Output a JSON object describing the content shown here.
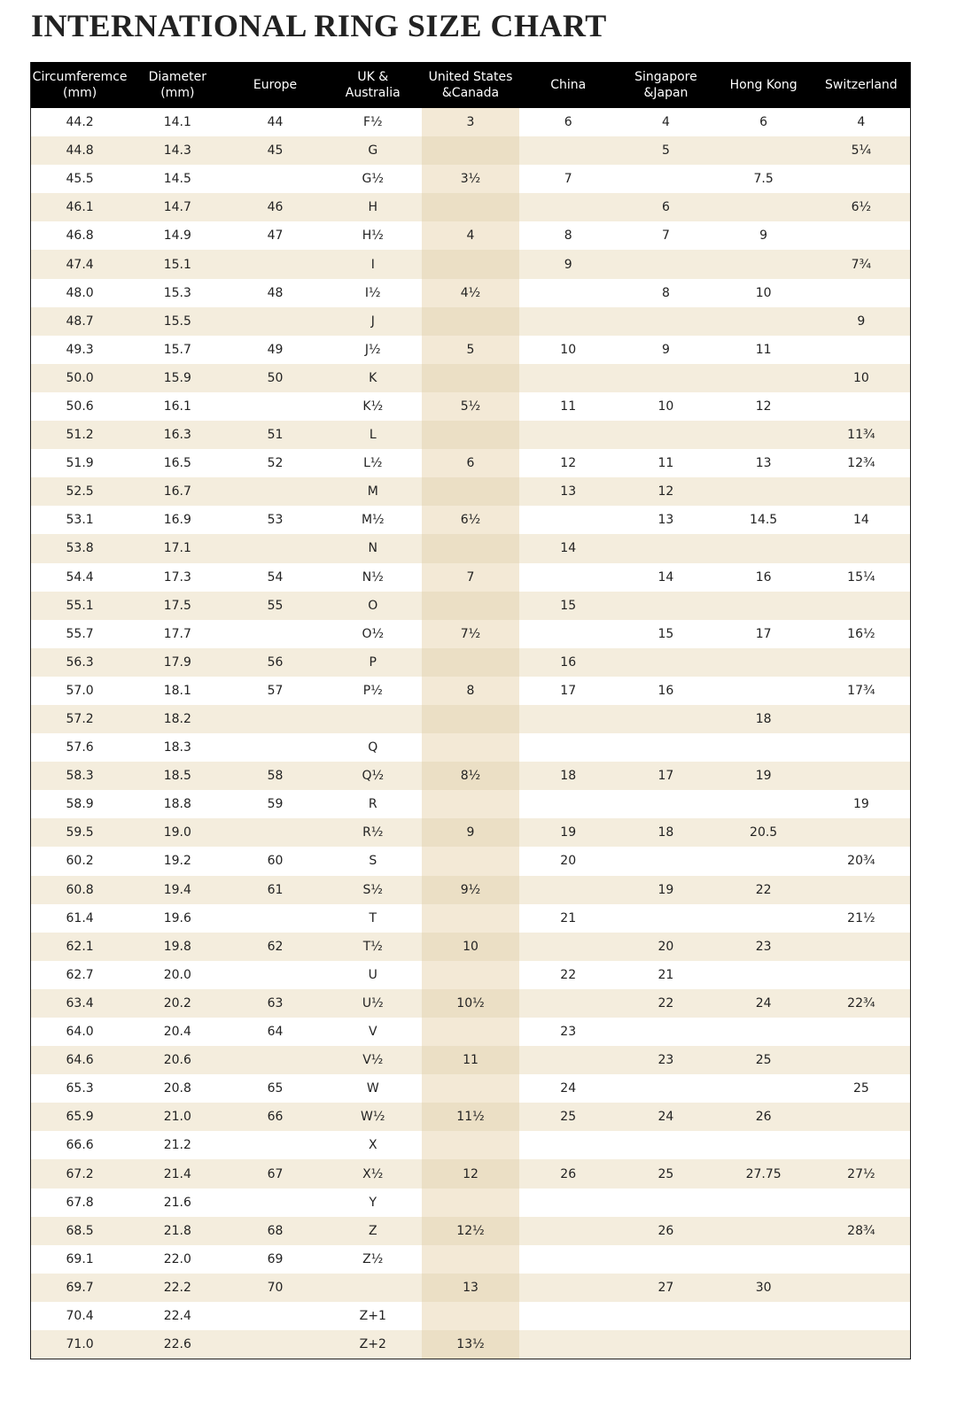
{
  "title": "INTERNATIONAL RING SIZE CHART",
  "colors": {
    "header_bg": "#000000",
    "stripe": "#f4eddd",
    "us_column": "#f3e9d6"
  },
  "chart_data": {
    "type": "table",
    "columns": [
      [
        "Circumferemce",
        "(mm)"
      ],
      [
        "Diameter",
        "(mm)"
      ],
      [
        "Europe"
      ],
      [
        "UK &",
        "Australia"
      ],
      [
        "United States",
        "&Canada"
      ],
      [
        "China"
      ],
      [
        "Singapore",
        "&Japan"
      ],
      [
        "Hong Kong"
      ],
      [
        "Switzerland"
      ]
    ],
    "rows": [
      [
        "44.2",
        "14.1",
        "44",
        "F½",
        "3",
        "6",
        "4",
        "6",
        "4"
      ],
      [
        "44.8",
        "14.3",
        "45",
        "G",
        "",
        "",
        "5",
        "",
        "5¼"
      ],
      [
        "45.5",
        "14.5",
        "",
        "G½",
        "3½",
        "7",
        "",
        "7.5",
        ""
      ],
      [
        "46.1",
        "14.7",
        "46",
        "H",
        "",
        "",
        "6",
        "",
        "6½"
      ],
      [
        "46.8",
        "14.9",
        "47",
        "H½",
        "4",
        "8",
        "7",
        "9",
        ""
      ],
      [
        "47.4",
        "15.1",
        "",
        "I",
        "",
        "9",
        "",
        "",
        "7¾"
      ],
      [
        "48.0",
        "15.3",
        "48",
        "I½",
        "4½",
        "",
        "8",
        "10",
        ""
      ],
      [
        "48.7",
        "15.5",
        "",
        "J",
        "",
        "",
        "",
        "",
        "9"
      ],
      [
        "49.3",
        "15.7",
        "49",
        "J½",
        "5",
        "10",
        "9",
        "11",
        ""
      ],
      [
        "50.0",
        "15.9",
        "50",
        "K",
        "",
        "",
        "",
        "",
        "10"
      ],
      [
        "50.6",
        "16.1",
        "",
        "K½",
        "5½",
        "11",
        "10",
        "12",
        ""
      ],
      [
        "51.2",
        "16.3",
        "51",
        "L",
        "",
        "",
        "",
        "",
        "11¾"
      ],
      [
        "51.9",
        "16.5",
        "52",
        "L½",
        "6",
        "12",
        "11",
        "13",
        "12¾"
      ],
      [
        "52.5",
        "16.7",
        "",
        "M",
        "",
        "13",
        "12",
        "",
        ""
      ],
      [
        "53.1",
        "16.9",
        "53",
        "M½",
        "6½",
        "",
        "13",
        "14.5",
        "14"
      ],
      [
        "53.8",
        "17.1",
        "",
        "N",
        "",
        "14",
        "",
        "",
        ""
      ],
      [
        "54.4",
        "17.3",
        "54",
        "N½",
        "7",
        "",
        "14",
        "16",
        "15¼"
      ],
      [
        "55.1",
        "17.5",
        "55",
        "O",
        "",
        "15",
        "",
        "",
        ""
      ],
      [
        "55.7",
        "17.7",
        "",
        "O½",
        "7½",
        "",
        "15",
        "17",
        "16½"
      ],
      [
        "56.3",
        "17.9",
        "56",
        "P",
        "",
        "16",
        "",
        "",
        ""
      ],
      [
        "57.0",
        "18.1",
        "57",
        "P½",
        "8",
        "17",
        "16",
        "",
        "17¾"
      ],
      [
        "57.2",
        "18.2",
        "",
        "",
        "",
        "",
        "",
        "18",
        ""
      ],
      [
        "57.6",
        "18.3",
        "",
        "Q",
        "",
        "",
        "",
        "",
        ""
      ],
      [
        "58.3",
        "18.5",
        "58",
        "Q½",
        "8½",
        "18",
        "17",
        "19",
        ""
      ],
      [
        "58.9",
        "18.8",
        "59",
        "R",
        "",
        "",
        "",
        "",
        "19"
      ],
      [
        "59.5",
        "19.0",
        "",
        "R½",
        "9",
        "19",
        "18",
        "20.5",
        ""
      ],
      [
        "60.2",
        "19.2",
        "60",
        "S",
        "",
        "20",
        "",
        "",
        "20¾"
      ],
      [
        "60.8",
        "19.4",
        "61",
        "S½",
        "9½",
        "",
        "19",
        "22",
        ""
      ],
      [
        "61.4",
        "19.6",
        "",
        "T",
        "",
        "21",
        "",
        "",
        "21½"
      ],
      [
        "62.1",
        "19.8",
        "62",
        "T½",
        "10",
        "",
        "20",
        "23",
        ""
      ],
      [
        "62.7",
        "20.0",
        "",
        "U",
        "",
        "22",
        "21",
        "",
        ""
      ],
      [
        "63.4",
        "20.2",
        "63",
        "U½",
        "10½",
        "",
        "22",
        "24",
        "22¾"
      ],
      [
        "64.0",
        "20.4",
        "64",
        "V",
        "",
        "23",
        "",
        "",
        ""
      ],
      [
        "64.6",
        "20.6",
        "",
        "V½",
        "11",
        "",
        "23",
        "25",
        ""
      ],
      [
        "65.3",
        "20.8",
        "65",
        "W",
        "",
        "24",
        "",
        "",
        "25"
      ],
      [
        "65.9",
        "21.0",
        "66",
        "W½",
        "11½",
        "25",
        "24",
        "26",
        ""
      ],
      [
        "66.6",
        "21.2",
        "",
        "X",
        "",
        "",
        "",
        "",
        ""
      ],
      [
        "67.2",
        "21.4",
        "67",
        "X½",
        "12",
        "26",
        "25",
        "27.75",
        "27½"
      ],
      [
        "67.8",
        "21.6",
        "",
        "Y",
        "",
        "",
        "",
        "",
        ""
      ],
      [
        "68.5",
        "21.8",
        "68",
        "Z",
        "12½",
        "",
        "26",
        "",
        "28¾"
      ],
      [
        "69.1",
        "22.0",
        "69",
        "Z½",
        "",
        "",
        "",
        "",
        ""
      ],
      [
        "69.7",
        "22.2",
        "70",
        "",
        "13",
        "",
        "27",
        "30",
        ""
      ],
      [
        "70.4",
        "22.4",
        "",
        "Z+1",
        "",
        "",
        "",
        "",
        ""
      ],
      [
        "71.0",
        "22.6",
        "",
        "Z+2",
        "13½",
        "",
        "",
        "",
        ""
      ]
    ]
  }
}
